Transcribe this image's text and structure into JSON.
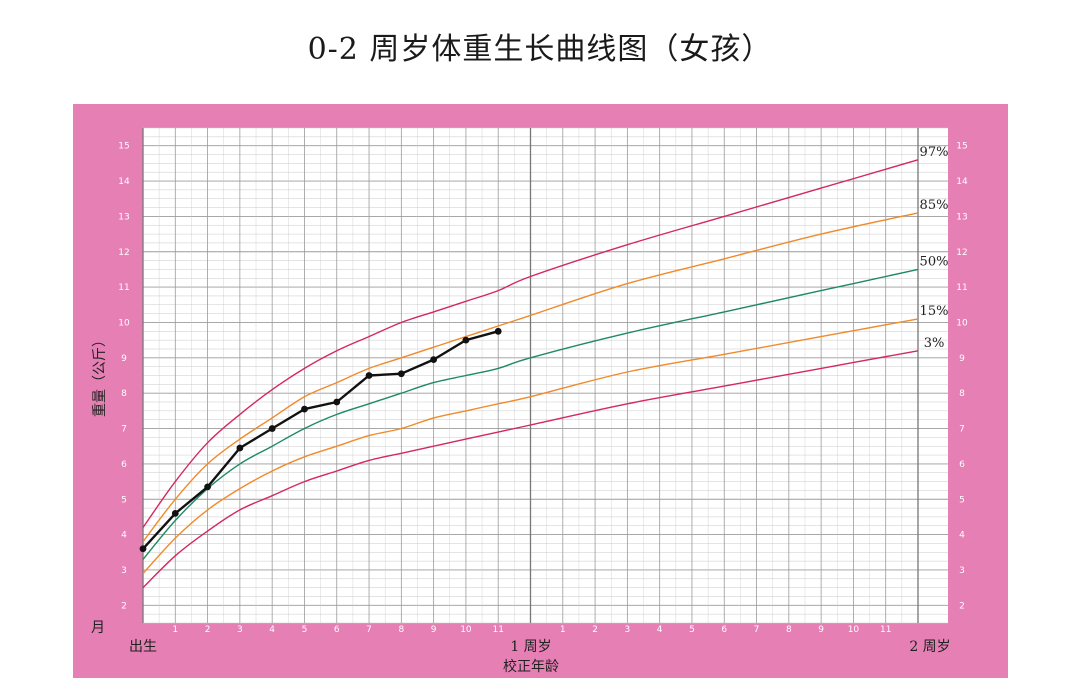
{
  "page": {
    "title": "0-2 周岁体重生长曲线图（女孩）"
  },
  "colors": {
    "frame": "#e57fb4",
    "plot_bg": "#ffffff",
    "grid_minor": "#c9c9c9",
    "grid_major": "#9b9b9b",
    "p97": "#d3295e",
    "p85": "#f08a2a",
    "p50": "#1f8a62",
    "p15": "#f08a2a",
    "p3": "#d3295e",
    "child": "#111111"
  },
  "labels": {
    "ylabel": "重量（公斤）",
    "month_unit": "月",
    "birth": "出生",
    "one_year": "1 周岁",
    "two_year": "2 周岁",
    "xlabel": "校正年龄"
  },
  "chart_data": {
    "type": "line",
    "title": "0-2 周岁体重生长曲线图（女孩）",
    "xlabel": "校正年龄",
    "ylabel": "重量（公斤）",
    "x_unit": "months",
    "xlim": [
      0,
      24
    ],
    "ylim": [
      1.5,
      15.5
    ],
    "grid": true,
    "legend": "percentile labels at right end of curves",
    "y_ticks": [
      2,
      3,
      4,
      5,
      6,
      7,
      8,
      9,
      10,
      11,
      12,
      13,
      14,
      15
    ],
    "x_ticks": [
      {
        "x": 0,
        "label": "出生"
      },
      {
        "x": 1,
        "label": "1"
      },
      {
        "x": 2,
        "label": "2"
      },
      {
        "x": 3,
        "label": "3"
      },
      {
        "x": 4,
        "label": "4"
      },
      {
        "x": 5,
        "label": "5"
      },
      {
        "x": 6,
        "label": "6"
      },
      {
        "x": 7,
        "label": "7"
      },
      {
        "x": 8,
        "label": "8"
      },
      {
        "x": 9,
        "label": "9"
      },
      {
        "x": 10,
        "label": "10"
      },
      {
        "x": 11,
        "label": "11"
      },
      {
        "x": 12,
        "label": "1 周岁"
      },
      {
        "x": 13,
        "label": "1"
      },
      {
        "x": 14,
        "label": "2"
      },
      {
        "x": 15,
        "label": "3"
      },
      {
        "x": 16,
        "label": "4"
      },
      {
        "x": 17,
        "label": "5"
      },
      {
        "x": 18,
        "label": "6"
      },
      {
        "x": 19,
        "label": "7"
      },
      {
        "x": 20,
        "label": "8"
      },
      {
        "x": 21,
        "label": "9"
      },
      {
        "x": 22,
        "label": "10"
      },
      {
        "x": 23,
        "label": "11"
      },
      {
        "x": 24,
        "label": "2 周岁"
      }
    ],
    "series": [
      {
        "name": "97%",
        "color": "#d3295e",
        "x": [
          0,
          1,
          2,
          3,
          4,
          5,
          6,
          7,
          8,
          9,
          10,
          11,
          12,
          15,
          18,
          21,
          24
        ],
        "values": [
          4.2,
          5.5,
          6.6,
          7.4,
          8.1,
          8.7,
          9.2,
          9.6,
          10.0,
          10.3,
          10.6,
          10.9,
          11.3,
          12.2,
          13.0,
          13.8,
          14.6
        ]
      },
      {
        "name": "85%",
        "color": "#f08a2a",
        "x": [
          0,
          1,
          2,
          3,
          4,
          5,
          6,
          7,
          8,
          9,
          10,
          11,
          12,
          15,
          18,
          21,
          24
        ],
        "values": [
          3.8,
          5.0,
          6.0,
          6.7,
          7.3,
          7.9,
          8.3,
          8.7,
          9.0,
          9.3,
          9.6,
          9.9,
          10.2,
          11.1,
          11.8,
          12.5,
          13.1
        ]
      },
      {
        "name": "50%",
        "color": "#1f8a62",
        "x": [
          0,
          1,
          2,
          3,
          4,
          5,
          6,
          7,
          8,
          9,
          10,
          11,
          12,
          15,
          18,
          21,
          24
        ],
        "values": [
          3.3,
          4.4,
          5.3,
          6.0,
          6.5,
          7.0,
          7.4,
          7.7,
          8.0,
          8.3,
          8.5,
          8.7,
          9.0,
          9.7,
          10.3,
          10.9,
          11.5
        ]
      },
      {
        "name": "15%",
        "color": "#f08a2a",
        "x": [
          0,
          1,
          2,
          3,
          4,
          5,
          6,
          7,
          8,
          9,
          10,
          11,
          12,
          15,
          18,
          21,
          24
        ],
        "values": [
          2.9,
          3.9,
          4.7,
          5.3,
          5.8,
          6.2,
          6.5,
          6.8,
          7.0,
          7.3,
          7.5,
          7.7,
          7.9,
          8.6,
          9.1,
          9.6,
          10.1
        ]
      },
      {
        "name": "3%",
        "color": "#d3295e",
        "x": [
          0,
          1,
          2,
          3,
          4,
          5,
          6,
          7,
          8,
          9,
          10,
          11,
          12,
          15,
          18,
          21,
          24
        ],
        "values": [
          2.5,
          3.4,
          4.1,
          4.7,
          5.1,
          5.5,
          5.8,
          6.1,
          6.3,
          6.5,
          6.7,
          6.9,
          7.1,
          7.7,
          8.2,
          8.7,
          9.2
        ]
      },
      {
        "name": "",
        "color": "#111111",
        "markers": true,
        "x": [
          0,
          1,
          2,
          3,
          4,
          5,
          6,
          7,
          8,
          9,
          10,
          11
        ],
        "values": [
          3.6,
          4.6,
          5.35,
          6.45,
          7.0,
          7.55,
          7.75,
          8.5,
          8.55,
          8.95,
          9.5,
          9.75
        ]
      }
    ]
  }
}
